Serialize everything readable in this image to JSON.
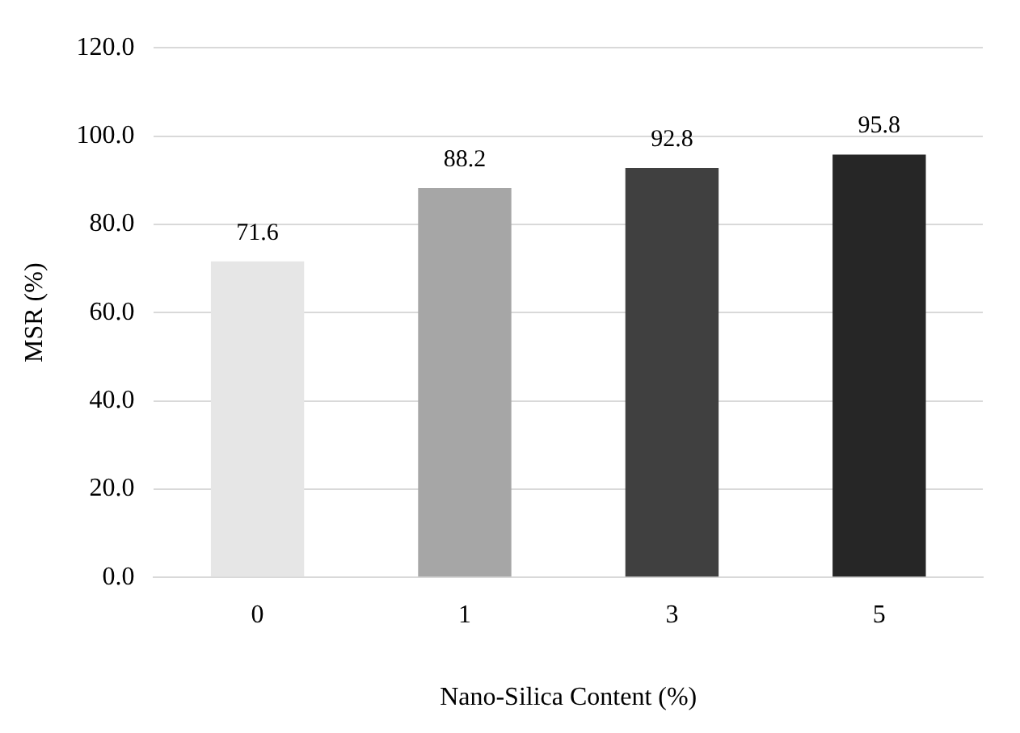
{
  "chart_data": {
    "type": "bar",
    "xlabel": "Nano-Silica Content (%)",
    "ylabel": "MSR (%)",
    "categories": [
      "0",
      "1",
      "3",
      "5"
    ],
    "values": [
      71.6,
      88.2,
      92.8,
      95.8
    ],
    "colors": [
      "#e6e6e6",
      "#a6a6a6",
      "#404040",
      "#262626"
    ],
    "ylim": [
      0,
      120
    ],
    "yticks": [
      {
        "value": 0,
        "label": "0.0"
      },
      {
        "value": 20,
        "label": "20.0"
      },
      {
        "value": 40,
        "label": "40.0"
      },
      {
        "value": 60,
        "label": "60.0"
      },
      {
        "value": 80,
        "label": "80.0"
      },
      {
        "value": 100,
        "label": "100.0"
      },
      {
        "value": 120,
        "label": "120.0"
      }
    ],
    "grid": "y",
    "data_labels": true,
    "legend": false
  }
}
